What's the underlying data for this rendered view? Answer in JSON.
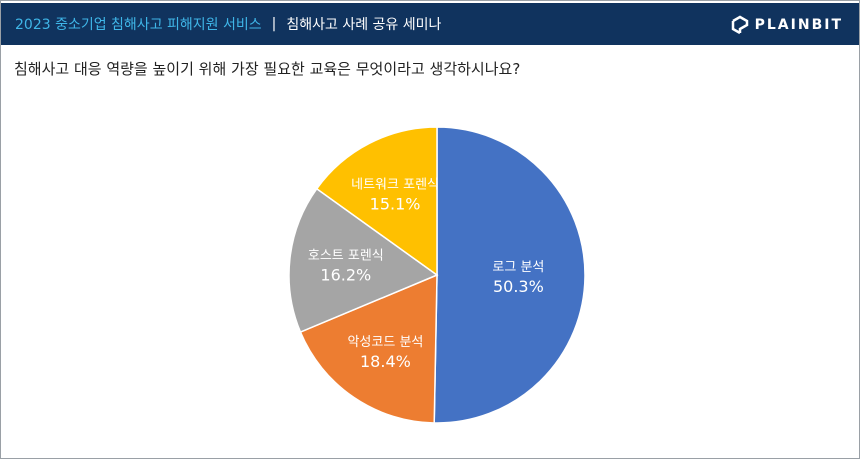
{
  "header": {
    "left_title": "2023 중소기업 침해사고 피해지원 서비스",
    "separator": "|",
    "right_title": "침해사고 사례 공유 세미나",
    "logo": "PLAINBIT"
  },
  "question": "침해사고 대응 역량을 높이기 위해 가장 필요한 교육은 무엇이라고 생각하시나요?",
  "chart_data": {
    "type": "pie",
    "start": "top, clockwise",
    "slices": [
      {
        "label": "로그 분석",
        "value": 50.3,
        "display": "50.3%",
        "color": "#4472c4"
      },
      {
        "label": "악성코드 분석",
        "value": 18.4,
        "display": "18.4%",
        "color": "#ed7d31"
      },
      {
        "label": "호스트 포렌식",
        "value": 16.2,
        "display": "16.2%",
        "color": "#a5a5a5"
      },
      {
        "label": "네트워크 포렌식",
        "value": 15.1,
        "display": "15.1%",
        "color": "#ffc000"
      }
    ]
  }
}
